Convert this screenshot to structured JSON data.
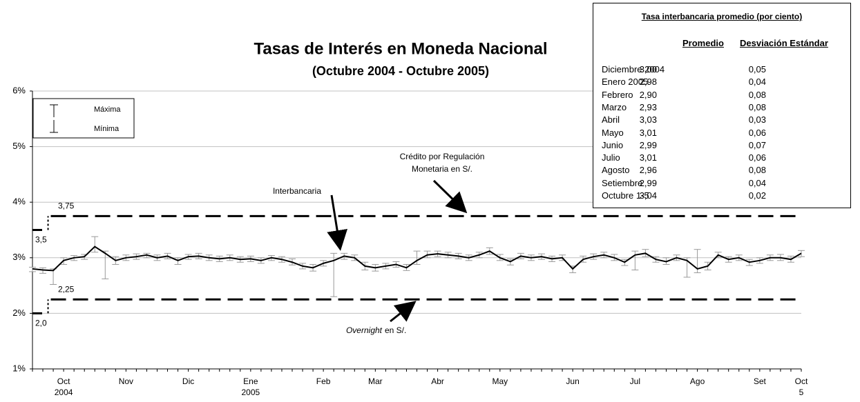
{
  "chart_data": {
    "type": "line",
    "title": "Tasas de Interés en Moneda Nacional",
    "subtitle": "(Octubre 2004 - Octubre 2005)",
    "categories": [
      null,
      null,
      null,
      "Oct\n2004",
      null,
      null,
      null,
      null,
      null,
      "Nov",
      null,
      null,
      null,
      null,
      null,
      "Dic",
      null,
      null,
      null,
      null,
      null,
      "Ene\n2005",
      null,
      null,
      null,
      null,
      null,
      null,
      "Feb",
      null,
      null,
      null,
      null,
      "Mar",
      null,
      null,
      null,
      null,
      null,
      "Abr",
      null,
      null,
      null,
      null,
      null,
      "May",
      null,
      null,
      null,
      null,
      null,
      null,
      "Jun",
      null,
      null,
      null,
      null,
      null,
      "Jul",
      null,
      null,
      null,
      null,
      null,
      "Ago",
      null,
      null,
      null,
      null,
      null,
      "Set",
      null,
      null,
      null,
      "Oct\n5"
    ],
    "values": [
      2.8,
      2.78,
      2.77,
      2.95,
      3.0,
      3.02,
      3.2,
      3.08,
      2.95,
      3.0,
      3.02,
      3.05,
      3.0,
      3.03,
      2.95,
      3.02,
      3.03,
      3.0,
      2.98,
      3.0,
      2.97,
      2.98,
      2.95,
      3.0,
      2.97,
      2.92,
      2.85,
      2.82,
      2.9,
      2.95,
      3.03,
      3.0,
      2.85,
      2.82,
      2.85,
      2.88,
      2.82,
      2.95,
      3.05,
      3.07,
      3.05,
      3.03,
      3.0,
      3.05,
      3.12,
      3.0,
      2.93,
      3.03,
      3.0,
      3.02,
      2.98,
      3.0,
      2.8,
      2.97,
      3.02,
      3.05,
      3.0,
      2.92,
      3.05,
      3.08,
      2.97,
      2.93,
      3.0,
      2.95,
      2.8,
      2.85,
      3.05,
      2.97,
      3.0,
      2.92,
      2.95,
      3.0,
      3.0,
      2.97,
      3.08
    ],
    "high": [
      2.83,
      2.82,
      2.8,
      3.0,
      3.04,
      3.06,
      3.38,
      3.12,
      3.02,
      3.05,
      3.07,
      3.08,
      3.05,
      3.08,
      3.0,
      3.06,
      3.08,
      3.05,
      3.03,
      3.05,
      3.02,
      3.03,
      3.0,
      3.04,
      3.02,
      2.98,
      2.9,
      2.88,
      2.95,
      3.08,
      3.08,
      3.05,
      2.92,
      2.88,
      2.9,
      2.93,
      2.88,
      3.12,
      3.12,
      3.12,
      3.1,
      3.08,
      3.05,
      3.1,
      3.18,
      3.06,
      2.98,
      3.08,
      3.05,
      3.07,
      3.03,
      3.05,
      2.85,
      3.03,
      3.07,
      3.1,
      3.06,
      2.97,
      3.12,
      3.15,
      3.02,
      3.0,
      3.05,
      3.0,
      3.15,
      2.92,
      3.1,
      3.02,
      3.05,
      2.97,
      3.0,
      3.05,
      3.06,
      3.03,
      3.13
    ],
    "low": [
      2.75,
      2.72,
      2.52,
      2.88,
      2.95,
      2.97,
      3.1,
      2.62,
      2.88,
      2.95,
      2.97,
      3.0,
      2.95,
      2.98,
      2.88,
      2.97,
      2.98,
      2.95,
      2.93,
      2.95,
      2.92,
      2.93,
      2.9,
      2.95,
      2.92,
      2.87,
      2.8,
      2.76,
      2.85,
      2.3,
      2.97,
      2.95,
      2.78,
      2.76,
      2.8,
      2.83,
      2.77,
      2.88,
      3.0,
      3.02,
      3.0,
      2.98,
      2.95,
      3.0,
      3.06,
      2.95,
      2.87,
      2.98,
      2.95,
      2.97,
      2.93,
      2.95,
      2.73,
      2.92,
      2.97,
      3.0,
      2.95,
      2.86,
      2.78,
      3.02,
      2.92,
      2.88,
      2.95,
      2.65,
      2.73,
      2.78,
      3.0,
      2.92,
      2.95,
      2.86,
      2.9,
      2.95,
      2.95,
      2.92,
      3.02
    ],
    "legend": [
      "Máxima",
      "Mínima"
    ],
    "credit_rate": {
      "values": [
        3.5,
        3.75
      ],
      "value_labels": [
        "3,5",
        "3,75"
      ]
    },
    "overnight_rate": {
      "values": [
        2.0,
        2.25
      ],
      "value_labels": [
        "2,0",
        "2,25"
      ]
    },
    "annotations": [
      "Crédito por Regulación\nMonetaria en S/.",
      "Interbancaria",
      "Overnight",
      "en S/."
    ],
    "ylim": [
      1,
      6
    ],
    "yticks": [
      {
        "value": 1,
        "label": "1%"
      },
      {
        "value": 2,
        "label": "2%"
      },
      {
        "value": 3,
        "label": "3%"
      },
      {
        "value": 4,
        "label": "4%"
      },
      {
        "value": 5,
        "label": "5%"
      },
      {
        "value": 6,
        "label": "6%"
      }
    ],
    "grid": true
  },
  "table": {
    "title": "Tasa interbancaria promedio (por ciento)",
    "headers": [
      "Promedio",
      "Desviación Estándar"
    ],
    "rows": [
      [
        "Diciembre 2004",
        "3,00",
        "0,05"
      ],
      [
        "Enero 2005",
        "2,98",
        "0,04"
      ],
      [
        "Febrero",
        "2,90",
        "0,08"
      ],
      [
        "Marzo",
        "2,93",
        "0,08"
      ],
      [
        "Abril",
        "3,03",
        "0,03"
      ],
      [
        "Mayo",
        "3,01",
        "0,06"
      ],
      [
        "Junio",
        "2,99",
        "0,07"
      ],
      [
        "Julio",
        "3,01",
        "0,06"
      ],
      [
        "Agosto",
        "2,96",
        "0,08"
      ],
      [
        "Setiembre",
        "2,99",
        "0,04"
      ],
      [
        "Octubre 1-5",
        "3,04",
        "0,02"
      ]
    ]
  }
}
